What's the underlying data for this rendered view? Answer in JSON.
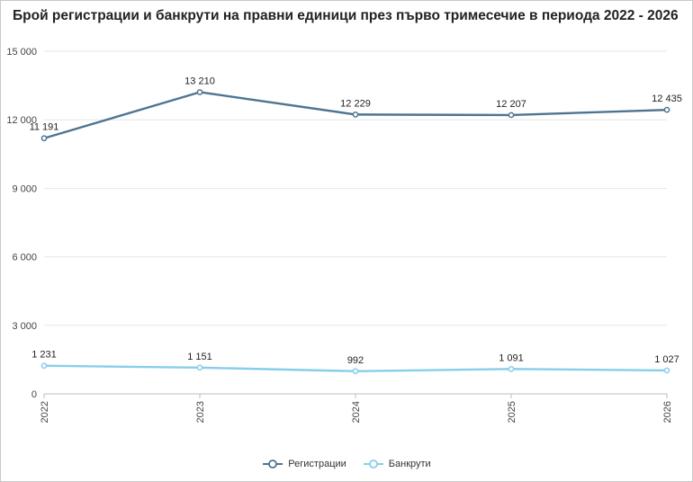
{
  "chart_data": {
    "type": "line",
    "title": "Брой регистрации и банкрути на правни единици през първо тримесечие в периода 2022 - 2026",
    "categories": [
      "2022",
      "2023",
      "2024",
      "2025",
      "2026"
    ],
    "ylim": [
      0,
      15000
    ],
    "yticks": [
      0,
      3000,
      6000,
      9000,
      12000,
      15000
    ],
    "ytick_labels": [
      "0",
      "3 000",
      "6 000",
      "9 000",
      "12 000",
      "15 000"
    ],
    "grid": true,
    "legend_position": "bottom",
    "series": [
      {
        "name": "Регистрации",
        "color": "#4e7490",
        "values": [
          11191,
          13210,
          12229,
          12207,
          12435
        ],
        "labels": [
          "11 191",
          "13 210",
          "12 229",
          "12 207",
          "12 435"
        ]
      },
      {
        "name": "Банкрути",
        "color": "#87ceeb",
        "values": [
          1231,
          1151,
          992,
          1091,
          1027
        ],
        "labels": [
          "1 231",
          "1 151",
          "992",
          "1 091",
          "1 027"
        ]
      }
    ]
  }
}
